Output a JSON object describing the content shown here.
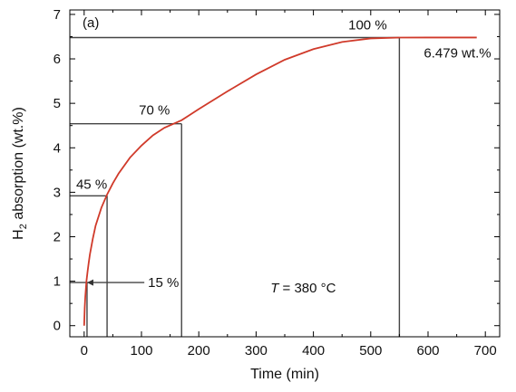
{
  "chart_data": {
    "type": "line",
    "panel_label": "(a)",
    "xlabel": "Time (min)",
    "ylabel_main": "H",
    "ylabel_sub": "2",
    "ylabel_rest": " absorption (wt.%)",
    "xlim": [
      -25,
      725
    ],
    "ylim": [
      -0.25,
      7.1
    ],
    "xticks": [
      0,
      100,
      200,
      300,
      400,
      500,
      600,
      700
    ],
    "yticks": [
      0,
      1,
      2,
      3,
      4,
      5,
      6,
      7
    ],
    "grid": false,
    "legend": "none",
    "series": [
      {
        "color": "#d03a2a",
        "x": [
          0,
          1,
          2,
          4,
          6,
          8,
          10,
          15,
          20,
          30,
          40,
          50,
          60,
          80,
          100,
          120,
          140,
          170,
          200,
          250,
          300,
          350,
          400,
          450,
          500,
          550,
          600,
          650,
          685
        ],
        "y": [
          0,
          0.4,
          0.65,
          1.0,
          1.22,
          1.42,
          1.6,
          1.95,
          2.25,
          2.65,
          2.95,
          3.2,
          3.42,
          3.78,
          4.05,
          4.28,
          4.45,
          4.62,
          4.87,
          5.27,
          5.65,
          5.98,
          6.22,
          6.38,
          6.46,
          6.479,
          6.48,
          6.48,
          6.48
        ]
      }
    ],
    "markers": [
      {
        "label": "15 %",
        "x": 5,
        "y": 0.97
      },
      {
        "label": "45 %",
        "x": 40,
        "y": 2.92
      },
      {
        "label": "70 %",
        "x": 170,
        "y": 4.54
      },
      {
        "label": "100 %",
        "x": 550,
        "y": 6.479
      }
    ],
    "annotations": {
      "final_value": "6.479 wt.%",
      "temperature_var": "T",
      "temperature_rest": " = 380 °C"
    }
  }
}
